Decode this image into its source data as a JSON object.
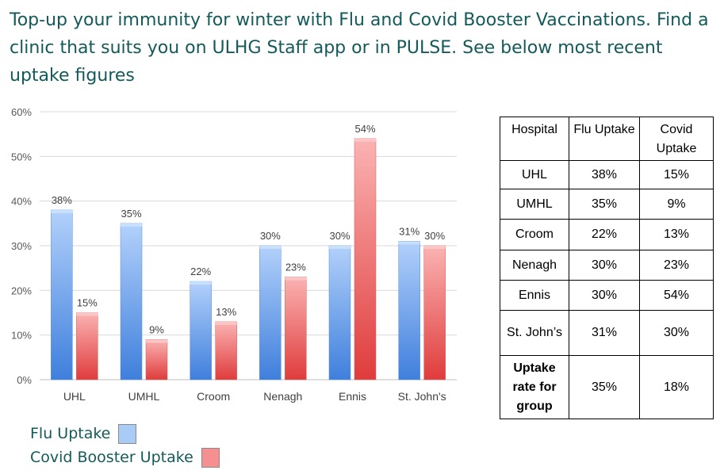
{
  "headline": "Top-up your immunity for winter with Flu and Covid Booster Vaccinations. Find a clinic that suits you on ULHG Staff app or in PULSE. See below most recent uptake figures",
  "chart_data": {
    "type": "bar",
    "categories": [
      "UHL",
      "UMHL",
      "Croom",
      "Nenagh",
      "Ennis",
      "St. John's"
    ],
    "series": [
      {
        "name": "Flu Uptake",
        "values": [
          38,
          35,
          22,
          30,
          30,
          31
        ],
        "labels": [
          "38%",
          "35%",
          "22%",
          "30%",
          "30%",
          "31%"
        ],
        "color": "#7aaef0"
      },
      {
        "name": "Covid Booster Uptake",
        "values": [
          15,
          9,
          13,
          23,
          54,
          30
        ],
        "labels": [
          "15%",
          "9%",
          "13%",
          "23%",
          "54%",
          "30%"
        ],
        "color": "#f07878"
      }
    ],
    "y_ticks": [
      "0%",
      "10%",
      "20%",
      "30%",
      "40%",
      "50%",
      "60%"
    ],
    "ylim": [
      0,
      60
    ],
    "grid": true,
    "legend_position": "bottom-left"
  },
  "legend": {
    "flu_label": "Flu Uptake",
    "covid_label": "Covid Booster Uptake",
    "flu_color": "#a9ccf7",
    "covid_color": "#f59090"
  },
  "table": {
    "headers": [
      "Hospital",
      "Flu Uptake",
      "Covid Uptake"
    ],
    "rows": [
      [
        "UHL",
        "38%",
        "15%"
      ],
      [
        "UMHL",
        "35%",
        "9%"
      ],
      [
        "Croom",
        "22%",
        "13%"
      ],
      [
        "Nenagh",
        "30%",
        "23%"
      ],
      [
        "Ennis",
        "30%",
        "54%"
      ],
      [
        "St. John’s",
        "31%",
        "30%"
      ]
    ],
    "summary": [
      "Uptake rate for group",
      "35%",
      "18%"
    ]
  }
}
